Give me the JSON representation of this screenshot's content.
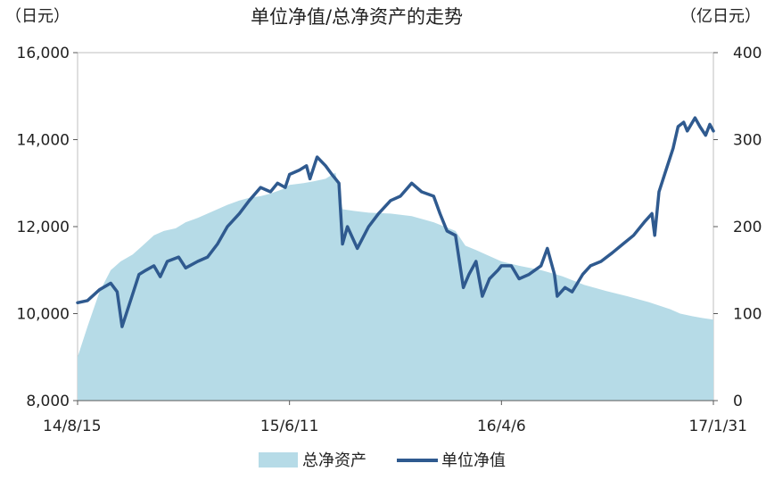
{
  "chart_data": {
    "type": "line+area",
    "title": "单位净值/总净资产的走势",
    "y_left_unit": "（日元）",
    "y_right_unit": "（亿日元）",
    "y_left_ticks": [
      "8,000",
      "10,000",
      "12,000",
      "14,000",
      "16,000"
    ],
    "y_left_range": [
      8000,
      16000
    ],
    "y_right_ticks": [
      "0",
      "100",
      "200",
      "300",
      "400"
    ],
    "y_right_range": [
      0,
      400
    ],
    "x_ticks": [
      "14/8/15",
      "15/6/11",
      "16/4/6",
      "17/1/31"
    ],
    "x_range": [
      "2014-08-15",
      "2017-01-31"
    ],
    "legend": {
      "position": "bottom"
    },
    "colors": {
      "area": "#b6dbe7",
      "line": "#2f5a8f"
    },
    "series": [
      {
        "name": "总净资产",
        "axis": "right",
        "type": "area",
        "points": [
          [
            "2014-08-15",
            50
          ],
          [
            "2014-08-29",
            85
          ],
          [
            "2014-09-15",
            125
          ],
          [
            "2014-10-01",
            150
          ],
          [
            "2014-10-15",
            160
          ],
          [
            "2014-11-01",
            168
          ],
          [
            "2014-11-15",
            178
          ],
          [
            "2014-12-01",
            190
          ],
          [
            "2014-12-15",
            195
          ],
          [
            "2015-01-01",
            198
          ],
          [
            "2015-01-15",
            205
          ],
          [
            "2015-02-01",
            210
          ],
          [
            "2015-02-15",
            215
          ],
          [
            "2015-03-01",
            220
          ],
          [
            "2015-03-15",
            225
          ],
          [
            "2015-04-01",
            230
          ],
          [
            "2015-04-15",
            233
          ],
          [
            "2015-05-01",
            235
          ],
          [
            "2015-05-15",
            238
          ],
          [
            "2015-06-01",
            243
          ],
          [
            "2015-06-11",
            248
          ],
          [
            "2015-07-01",
            250
          ],
          [
            "2015-07-15",
            252
          ],
          [
            "2015-08-01",
            255
          ],
          [
            "2015-08-15",
            262
          ],
          [
            "2015-08-25",
            220
          ],
          [
            "2015-09-10",
            218
          ],
          [
            "2015-10-01",
            216
          ],
          [
            "2015-11-01",
            215
          ],
          [
            "2015-12-01",
            212
          ],
          [
            "2016-01-01",
            205
          ],
          [
            "2016-02-01",
            195
          ],
          [
            "2016-02-15",
            178
          ],
          [
            "2016-03-01",
            173
          ],
          [
            "2016-03-15",
            168
          ],
          [
            "2016-04-06",
            160
          ],
          [
            "2016-05-01",
            155
          ],
          [
            "2016-06-01",
            150
          ],
          [
            "2016-07-01",
            143
          ],
          [
            "2016-08-01",
            133
          ],
          [
            "2016-09-01",
            126
          ],
          [
            "2016-10-01",
            120
          ],
          [
            "2016-11-01",
            113
          ],
          [
            "2016-12-01",
            105
          ],
          [
            "2016-12-15",
            100
          ],
          [
            "2017-01-01",
            97
          ],
          [
            "2017-01-15",
            95
          ],
          [
            "2017-01-31",
            93
          ]
        ]
      },
      {
        "name": "单位净值",
        "axis": "left",
        "type": "line",
        "points": [
          [
            "2014-08-15",
            10250
          ],
          [
            "2014-08-29",
            10300
          ],
          [
            "2014-09-15",
            10550
          ],
          [
            "2014-10-01",
            10700
          ],
          [
            "2014-10-10",
            10500
          ],
          [
            "2014-10-17",
            9700
          ],
          [
            "2014-10-31",
            10400
          ],
          [
            "2014-11-10",
            10900
          ],
          [
            "2014-11-20",
            11000
          ],
          [
            "2014-12-01",
            11100
          ],
          [
            "2014-12-10",
            10850
          ],
          [
            "2014-12-20",
            11200
          ],
          [
            "2015-01-05",
            11300
          ],
          [
            "2015-01-15",
            11050
          ],
          [
            "2015-02-01",
            11200
          ],
          [
            "2015-02-15",
            11300
          ],
          [
            "2015-03-01",
            11600
          ],
          [
            "2015-03-15",
            12000
          ],
          [
            "2015-04-01",
            12300
          ],
          [
            "2015-04-15",
            12600
          ],
          [
            "2015-05-01",
            12900
          ],
          [
            "2015-05-15",
            12800
          ],
          [
            "2015-05-25",
            13000
          ],
          [
            "2015-06-05",
            12900
          ],
          [
            "2015-06-11",
            13200
          ],
          [
            "2015-06-25",
            13300
          ],
          [
            "2015-07-05",
            13400
          ],
          [
            "2015-07-10",
            13100
          ],
          [
            "2015-07-20",
            13600
          ],
          [
            "2015-08-01",
            13400
          ],
          [
            "2015-08-10",
            13200
          ],
          [
            "2015-08-20",
            13000
          ],
          [
            "2015-08-25",
            11600
          ],
          [
            "2015-09-01",
            12000
          ],
          [
            "2015-09-15",
            11500
          ],
          [
            "2015-10-01",
            12000
          ],
          [
            "2015-10-15",
            12300
          ],
          [
            "2015-11-01",
            12600
          ],
          [
            "2015-11-15",
            12700
          ],
          [
            "2015-12-01",
            13000
          ],
          [
            "2015-12-15",
            12800
          ],
          [
            "2016-01-01",
            12700
          ],
          [
            "2016-01-10",
            12300
          ],
          [
            "2016-01-20",
            11900
          ],
          [
            "2016-02-01",
            11800
          ],
          [
            "2016-02-12",
            10600
          ],
          [
            "2016-02-20",
            10900
          ],
          [
            "2016-03-01",
            11200
          ],
          [
            "2016-03-10",
            10400
          ],
          [
            "2016-03-20",
            10800
          ],
          [
            "2016-04-01",
            11000
          ],
          [
            "2016-04-06",
            11100
          ],
          [
            "2016-04-20",
            11100
          ],
          [
            "2016-05-01",
            10800
          ],
          [
            "2016-05-15",
            10900
          ],
          [
            "2016-06-01",
            11100
          ],
          [
            "2016-06-10",
            11500
          ],
          [
            "2016-06-20",
            10900
          ],
          [
            "2016-06-24",
            10400
          ],
          [
            "2016-07-05",
            10600
          ],
          [
            "2016-07-15",
            10500
          ],
          [
            "2016-07-30",
            10900
          ],
          [
            "2016-08-10",
            11100
          ],
          [
            "2016-08-25",
            11200
          ],
          [
            "2016-09-10",
            11400
          ],
          [
            "2016-09-25",
            11600
          ],
          [
            "2016-10-10",
            11800
          ],
          [
            "2016-10-25",
            12100
          ],
          [
            "2016-11-05",
            12300
          ],
          [
            "2016-11-09",
            11800
          ],
          [
            "2016-11-15",
            12800
          ],
          [
            "2016-11-25",
            13300
          ],
          [
            "2016-12-05",
            13800
          ],
          [
            "2016-12-12",
            14300
          ],
          [
            "2016-12-20",
            14400
          ],
          [
            "2016-12-25",
            14200
          ],
          [
            "2017-01-05",
            14500
          ],
          [
            "2017-01-12",
            14300
          ],
          [
            "2017-01-20",
            14100
          ],
          [
            "2017-01-26",
            14350
          ],
          [
            "2017-01-31",
            14200
          ]
        ]
      }
    ]
  }
}
